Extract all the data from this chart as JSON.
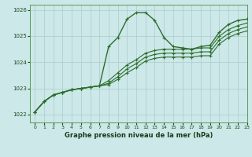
{
  "title": "Graphe pression niveau de la mer (hPa)",
  "background_color": "#cce8e8",
  "grid_color": "#aacccc",
  "line_color": "#2d6e2d",
  "xlim": [
    -0.5,
    23
  ],
  "ylim": [
    1021.7,
    1026.2
  ],
  "yticks": [
    1022,
    1023,
    1024,
    1025,
    1026
  ],
  "xticks": [
    0,
    1,
    2,
    3,
    4,
    5,
    6,
    7,
    8,
    9,
    10,
    11,
    12,
    13,
    14,
    15,
    16,
    17,
    18,
    19,
    20,
    21,
    22,
    23
  ],
  "series": [
    [
      1022.1,
      1022.5,
      1022.75,
      1022.85,
      1022.95,
      1023.0,
      1023.05,
      1023.1,
      1024.6,
      1024.95,
      1025.65,
      1025.9,
      1025.9,
      1025.6,
      1024.95,
      1024.6,
      1024.55,
      1024.5,
      1024.6,
      1024.65,
      1025.15,
      1025.45,
      1025.6,
      1025.65
    ],
    [
      1022.1,
      1022.5,
      1022.75,
      1022.85,
      1022.95,
      1023.0,
      1023.05,
      1023.1,
      1023.3,
      1023.6,
      1023.9,
      1024.1,
      1024.35,
      1024.45,
      1024.5,
      1024.5,
      1024.5,
      1024.5,
      1024.55,
      1024.55,
      1025.0,
      1025.25,
      1025.4,
      1025.5
    ],
    [
      1022.1,
      1022.5,
      1022.75,
      1022.85,
      1022.95,
      1023.0,
      1023.05,
      1023.1,
      1023.2,
      1023.45,
      1023.75,
      1023.95,
      1024.2,
      1024.3,
      1024.35,
      1024.35,
      1024.35,
      1024.35,
      1024.4,
      1024.4,
      1024.85,
      1025.1,
      1025.25,
      1025.35
    ],
    [
      1022.1,
      1022.5,
      1022.75,
      1022.85,
      1022.95,
      1023.0,
      1023.05,
      1023.1,
      1023.15,
      1023.35,
      1023.6,
      1023.8,
      1024.05,
      1024.15,
      1024.2,
      1024.2,
      1024.2,
      1024.2,
      1024.25,
      1024.25,
      1024.7,
      1024.95,
      1025.1,
      1025.2
    ]
  ]
}
